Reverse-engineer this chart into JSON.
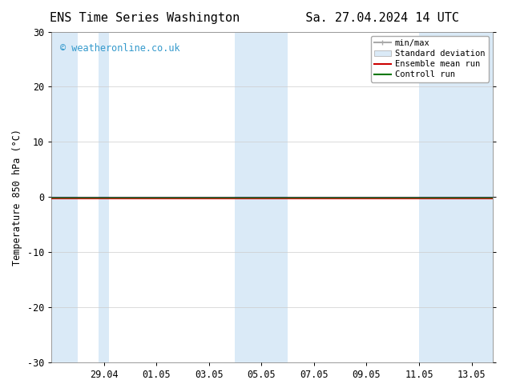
{
  "title_left": "ENS Time Series Washington",
  "title_right": "Sa. 27.04.2024 14 UTC",
  "ylabel": "Temperature 850 hPa (°C)",
  "ylim": [
    -30,
    30
  ],
  "yticks": [
    -30,
    -20,
    -10,
    0,
    10,
    20,
    30
  ],
  "xtick_labels": [
    "29.04",
    "01.05",
    "03.05",
    "05.05",
    "07.05",
    "09.05",
    "11.05",
    "13.05"
  ],
  "xtick_pos": [
    2,
    4,
    6,
    8,
    10,
    12,
    14,
    16
  ],
  "x_min": 0.0,
  "x_max": 16.8,
  "watermark": "© weatheronline.co.uk",
  "watermark_color": "#3399cc",
  "bg_color": "#ffffff",
  "plot_bg_color": "#ffffff",
  "shaded_color": "#daeaf7",
  "shaded_regions": [
    [
      0.0,
      1.0
    ],
    [
      1.8,
      2.2
    ],
    [
      7.0,
      9.0
    ],
    [
      14.0,
      16.8
    ]
  ],
  "ensemble_mean_color": "#cc0000",
  "control_run_color": "#007700",
  "minmax_color": "#aaaaaa",
  "legend_fontsize": 7.5,
  "title_fontsize": 11,
  "label_fontsize": 8.5,
  "tick_fontsize": 8.5
}
